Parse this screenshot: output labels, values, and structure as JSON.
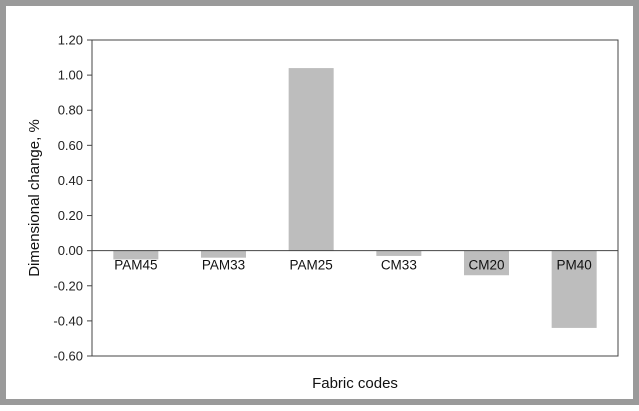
{
  "chart_data": {
    "type": "bar",
    "title": "",
    "xlabel": "Fabric codes",
    "ylabel": "Dimensional change, %",
    "categories": [
      "PAM45",
      "PAM33",
      "PAM25",
      "CM33",
      "CM20",
      "PM40"
    ],
    "values": [
      -0.05,
      -0.04,
      1.04,
      -0.03,
      -0.14,
      -0.44
    ],
    "ylim": [
      -0.6,
      1.2
    ],
    "yticks": [
      1.2,
      1.0,
      0.8,
      0.6,
      0.4,
      0.2,
      0.0,
      -0.2,
      -0.4,
      -0.6
    ],
    "ytick_labels": [
      "1.20",
      "1.00",
      "0.80",
      "0.60",
      "0.40",
      "0.20",
      "0.00",
      "-0.20",
      "-0.40",
      "-0.60"
    ],
    "grid": false,
    "legend": "none",
    "colors": {
      "bar": "#bdbdbd",
      "axis": "#444444",
      "frame": "#9a9a9a"
    }
  }
}
